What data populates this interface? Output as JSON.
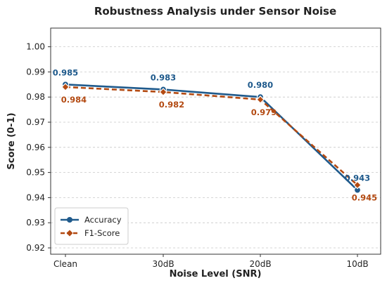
{
  "chart_data": {
    "type": "line",
    "title": "Robustness Analysis under Sensor Noise",
    "xlabel": "Noise Level (SNR)",
    "ylabel": "Score (0-1)",
    "categories": [
      "Clean",
      "30dB",
      "20dB",
      "10dB"
    ],
    "ylim": [
      0.92,
      1.005
    ],
    "yticks": [
      "0.92",
      "0.93",
      "0.94",
      "0.95",
      "0.96",
      "0.97",
      "0.98",
      "0.99",
      "1.00"
    ],
    "grid": true,
    "legend_position": "bottom-left",
    "series": [
      {
        "name": "Accuracy",
        "values": [
          0.985,
          0.983,
          0.98,
          0.943
        ],
        "labels": [
          "0.985",
          "0.983",
          "0.980",
          "0.943"
        ],
        "color": "#1f5a8c",
        "dash": "solid",
        "marker": "circle"
      },
      {
        "name": "F1-Score",
        "values": [
          0.984,
          0.982,
          0.979,
          0.945
        ],
        "labels": [
          "0.984",
          "0.982",
          "0.979",
          "0.945"
        ],
        "color": "#b34a12",
        "dash": "dashed",
        "marker": "diamond"
      }
    ]
  }
}
